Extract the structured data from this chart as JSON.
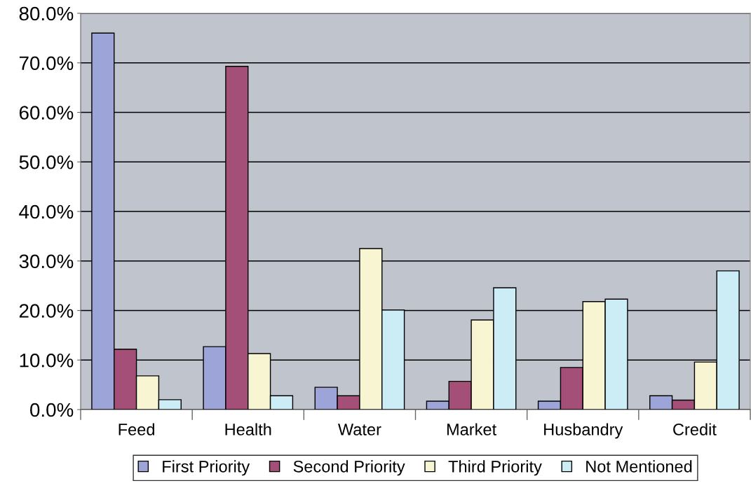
{
  "chart_data": {
    "type": "bar",
    "categories": [
      "Feed",
      "Health",
      "Water",
      "Market",
      "Husbandry",
      "Credit"
    ],
    "series": [
      {
        "name": "First Priority",
        "color": "#9ca4d8",
        "values": [
          76.0,
          12.7,
          4.5,
          1.7,
          1.7,
          2.8
        ]
      },
      {
        "name": "Second Priority",
        "color": "#a34f78",
        "values": [
          12.2,
          69.3,
          2.8,
          5.7,
          8.5,
          1.9
        ]
      },
      {
        "name": "Third Priority",
        "color": "#f8f6d2",
        "values": [
          6.8,
          11.3,
          32.5,
          18.1,
          21.8,
          9.6
        ]
      },
      {
        "name": "Not Mentioned",
        "color": "#ccedf6",
        "values": [
          2.0,
          2.8,
          20.1,
          24.6,
          22.3,
          28.0
        ]
      }
    ],
    "ylim": [
      0,
      80
    ],
    "yticks": [
      {
        "value": 0,
        "label": "0.0%"
      },
      {
        "value": 10,
        "label": "10.0%"
      },
      {
        "value": 20,
        "label": "20.0%"
      },
      {
        "value": 30,
        "label": "30.0%"
      },
      {
        "value": 40,
        "label": "40.0%"
      },
      {
        "value": 50,
        "label": "50.0%"
      },
      {
        "value": 60,
        "label": "60.0%"
      },
      {
        "value": 70,
        "label": "70.0%"
      },
      {
        "value": 80,
        "label": "80.0%"
      }
    ],
    "grid": "y",
    "legend": "bottom"
  }
}
